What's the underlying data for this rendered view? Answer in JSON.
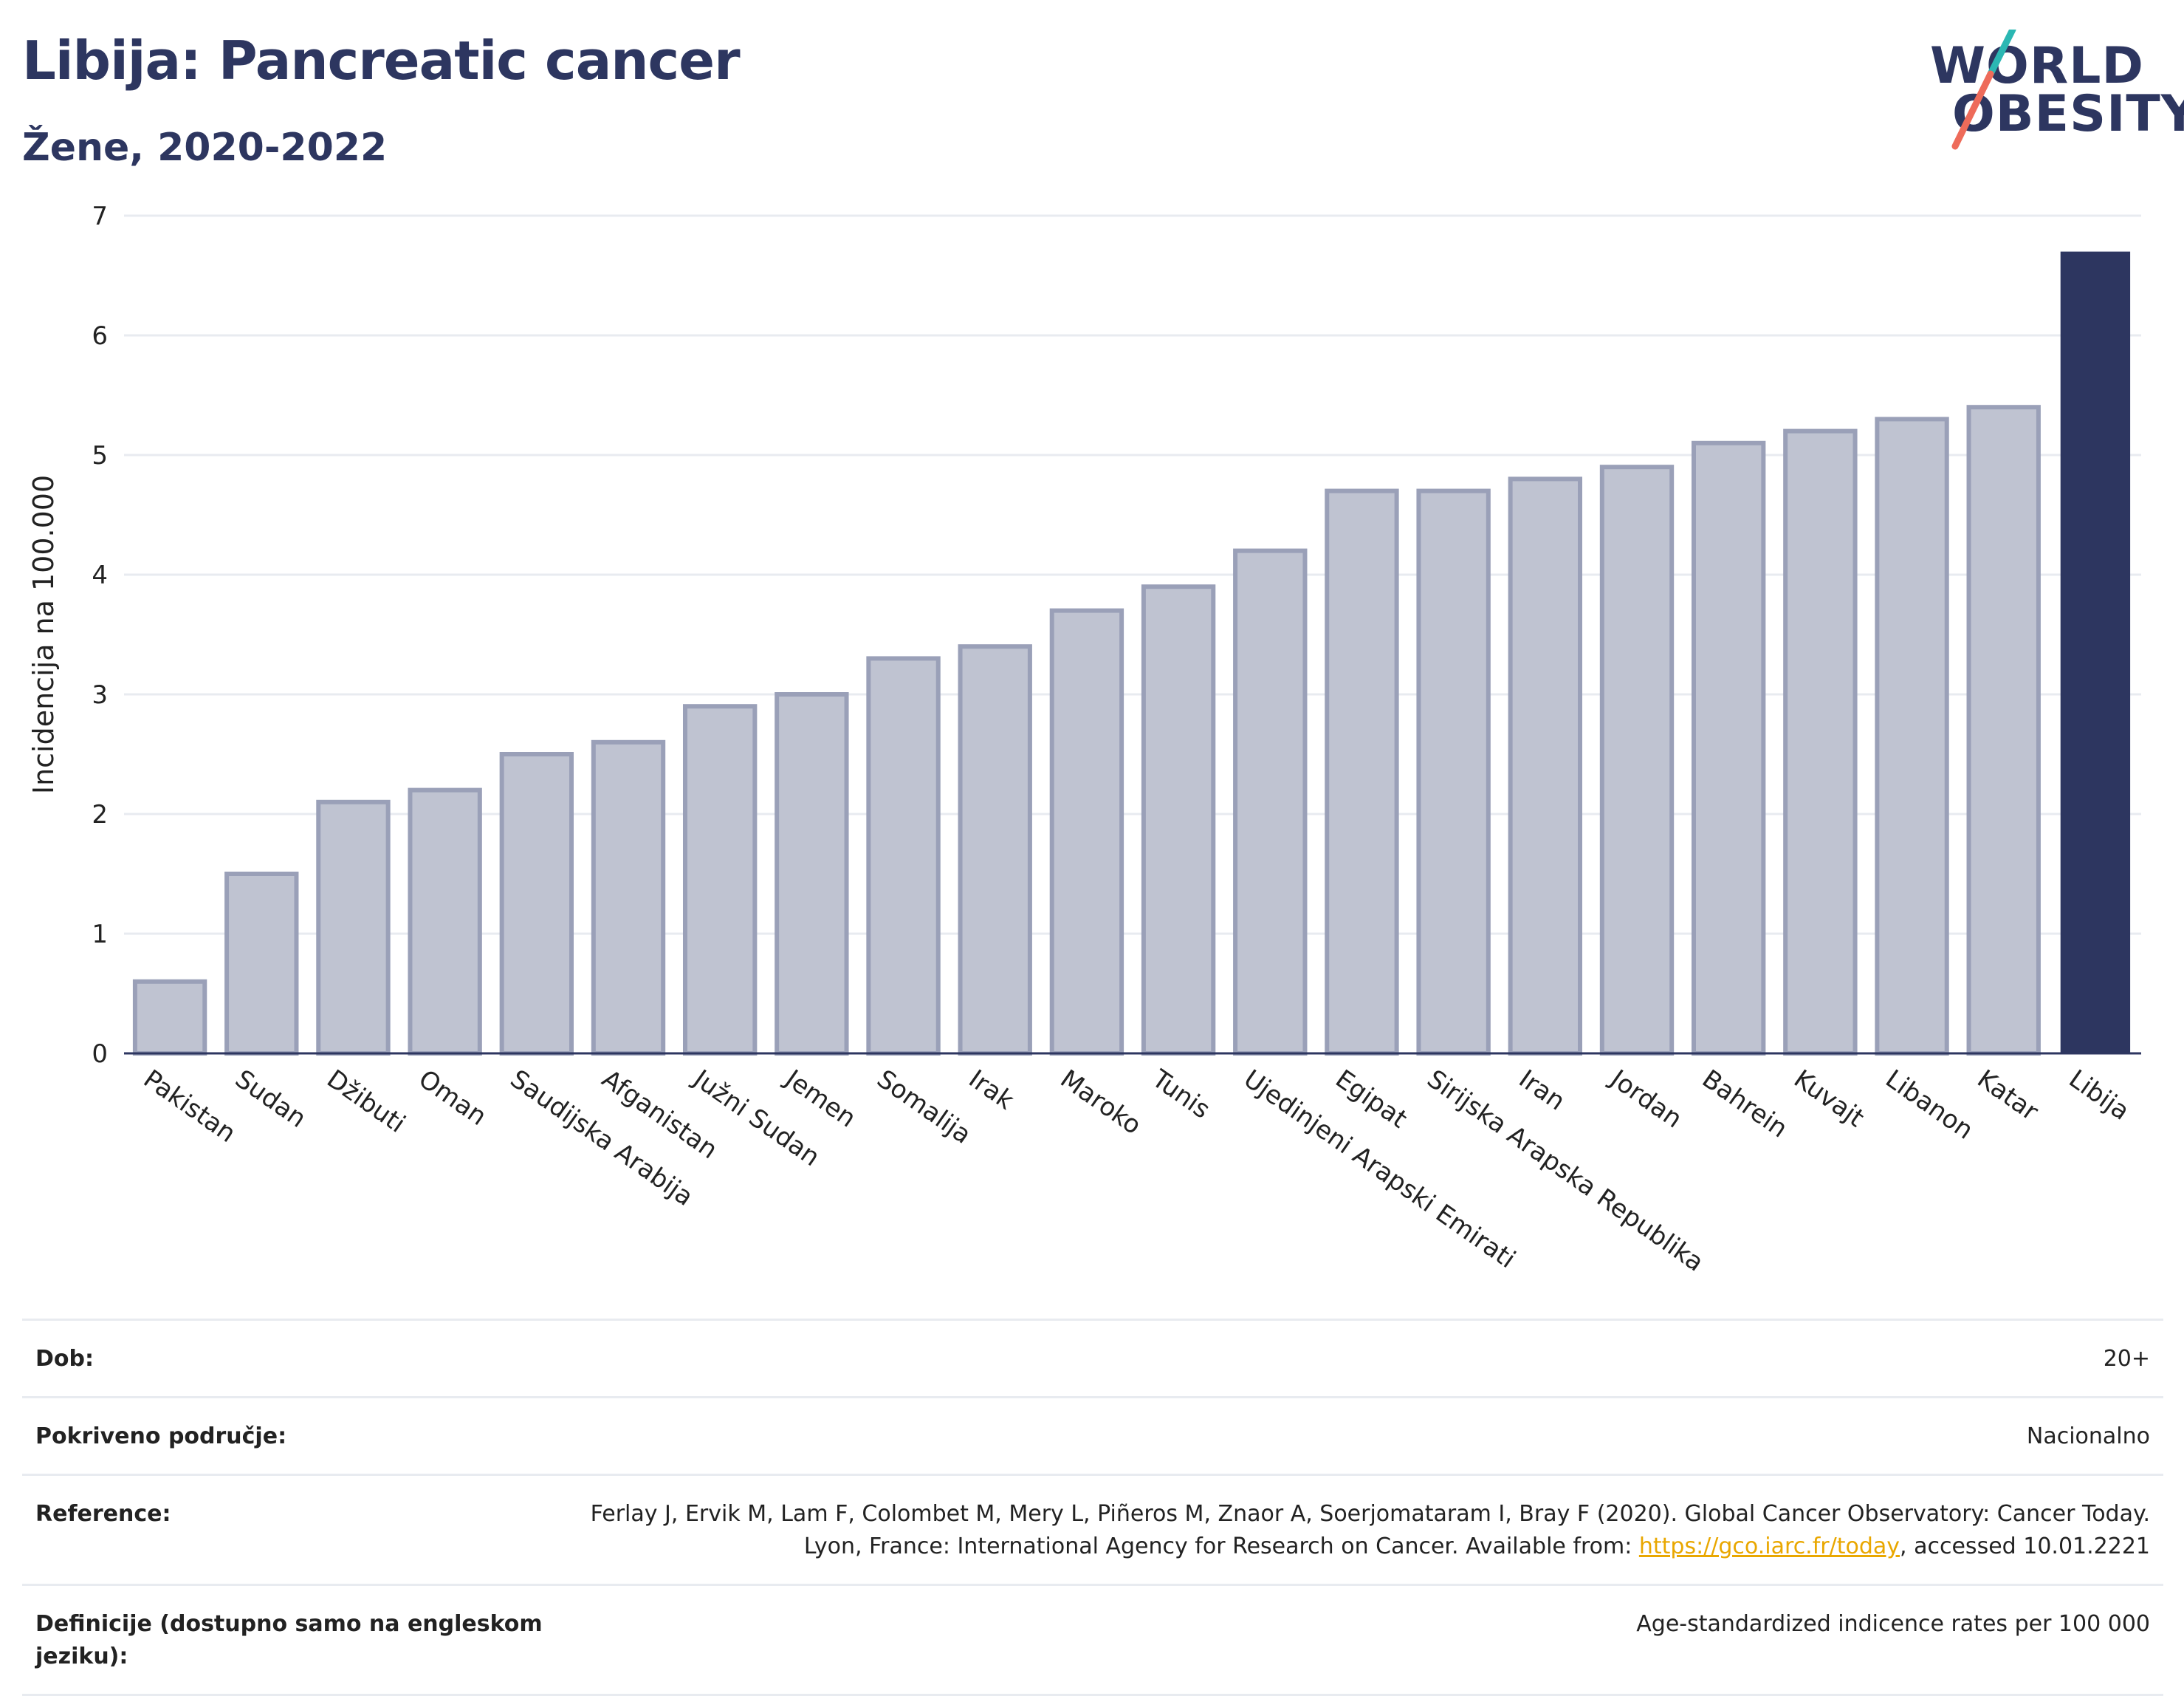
{
  "header": {
    "title": "Libija: Pancreatic cancer",
    "subtitle": "Žene, 2020-2022"
  },
  "logo": {
    "line1": "WORLD",
    "line2": "OBESITY",
    "colors": {
      "text": "#2d3660",
      "slash_top": "#2bb7b3",
      "slash_bottom": "#ee6b5a"
    }
  },
  "chart_data": {
    "type": "bar",
    "title": "",
    "xlabel": "",
    "ylabel": "Incidencija na 100.000",
    "ylim": [
      0,
      7
    ],
    "yticks": [
      0,
      1,
      2,
      3,
      4,
      5,
      6,
      7
    ],
    "grid": true,
    "categories": [
      "Pakistan",
      "Sudan",
      "Džibuti",
      "Oman",
      "Saudijska Arabija",
      "Afganistan",
      "Južni Sudan",
      "Jemen",
      "Somalija",
      "Irak",
      "Maroko",
      "Tunis",
      "Ujedinjeni Arapski Emirati",
      "Egipat",
      "Sirijska Arapska Republika",
      "Iran",
      "Jordan",
      "Bahrein",
      "Kuvajt",
      "Libanon",
      "Katar",
      "Libija"
    ],
    "values": [
      0.6,
      1.5,
      2.1,
      2.2,
      2.5,
      2.6,
      2.9,
      3.0,
      3.3,
      3.4,
      3.7,
      3.9,
      4.2,
      4.7,
      4.7,
      4.8,
      4.9,
      5.1,
      5.2,
      5.3,
      5.4,
      6.7
    ],
    "highlight": "Libija",
    "colors": {
      "bar": "#bfc3d1",
      "bar_edge": "#9aa0b8",
      "highlight": "#2d3660",
      "grid": "#e8ebf0",
      "axis": "#2d3660"
    }
  },
  "info": {
    "rows": [
      {
        "label": "Dob:",
        "value": "20+"
      },
      {
        "label": "Pokriveno područje:",
        "value": "Nacionalno"
      },
      {
        "label": "Reference:",
        "value_before": "Ferlay J, Ervik M, Lam F, Colombet M, Mery L, Piñeros M, Znaor A, Soerjomataram I, Bray F (2020). Global Cancer Observatory: Cancer Today. Lyon, France: International Agency for Research on Cancer. Available from: ",
        "link": "https://gco.iarc.fr/today",
        "value_after": ", accessed 10.01.2221"
      },
      {
        "label": "Definicije (dostupno samo na engleskom jeziku):",
        "value": "Age-standardized indicence rates per 100 000"
      }
    ]
  }
}
